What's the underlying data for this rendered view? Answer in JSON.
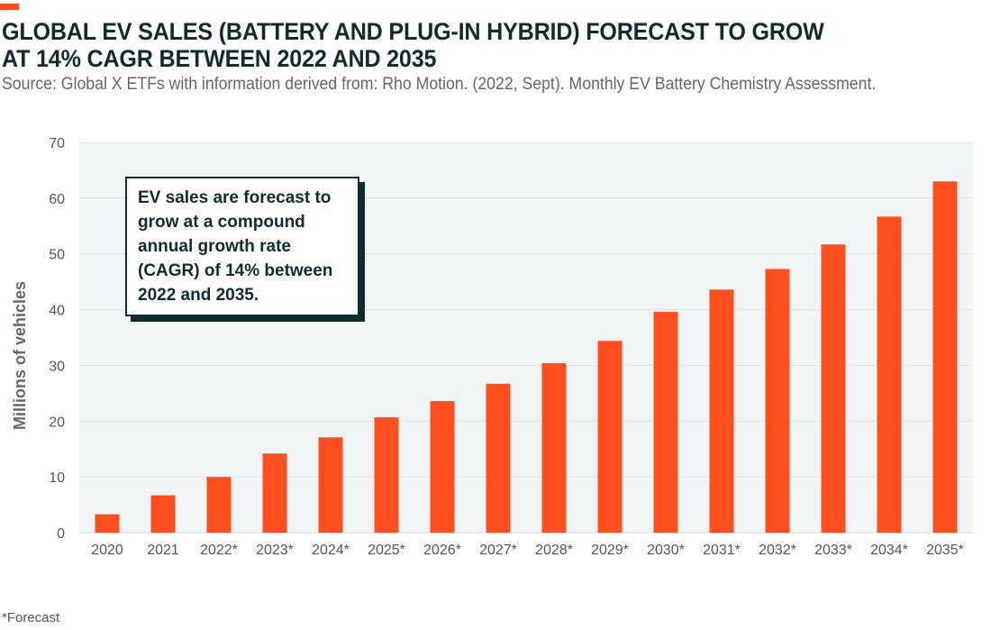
{
  "title": "GLOBAL EV SALES (BATTERY AND PLUG-IN HYBRID) FORECAST TO GROW AT 14% CAGR BETWEEN 2022 AND 2035",
  "source": "Source: Global X ETFs with information derived from: Rho Motion. (2022, Sept). Monthly EV Battery Chemistry Assessment.",
  "footnote": "*Forecast",
  "annotation": "EV sales are forecast to grow at a compound annual growth rate (CAGR) of 14% between 2022 and 2035.",
  "colors": {
    "bar": "#ff4f1f",
    "plot_bg": "#f0f4f5",
    "title": "#0f2c33"
  },
  "chart_data": {
    "type": "bar",
    "title": "GLOBAL EV SALES (BATTERY AND PLUG-IN HYBRID) FORECAST TO GROW AT 14% CAGR BETWEEN 2022 AND 2035",
    "xlabel": "",
    "ylabel": "Millions of vehicles",
    "ylim": [
      0,
      70
    ],
    "yticks": [
      0,
      10,
      20,
      30,
      40,
      50,
      60,
      70
    ],
    "grid": true,
    "categories": [
      "2020",
      "2021",
      "2022*",
      "2023*",
      "2024*",
      "2025*",
      "2026*",
      "2027*",
      "2028*",
      "2029*",
      "2030*",
      "2031*",
      "2032*",
      "2033*",
      "2034*",
      "2035*"
    ],
    "values": [
      3.3,
      6.7,
      10.0,
      14.2,
      17.1,
      20.7,
      23.6,
      26.7,
      30.4,
      34.4,
      39.6,
      43.6,
      47.3,
      51.7,
      56.7,
      63.0
    ]
  }
}
